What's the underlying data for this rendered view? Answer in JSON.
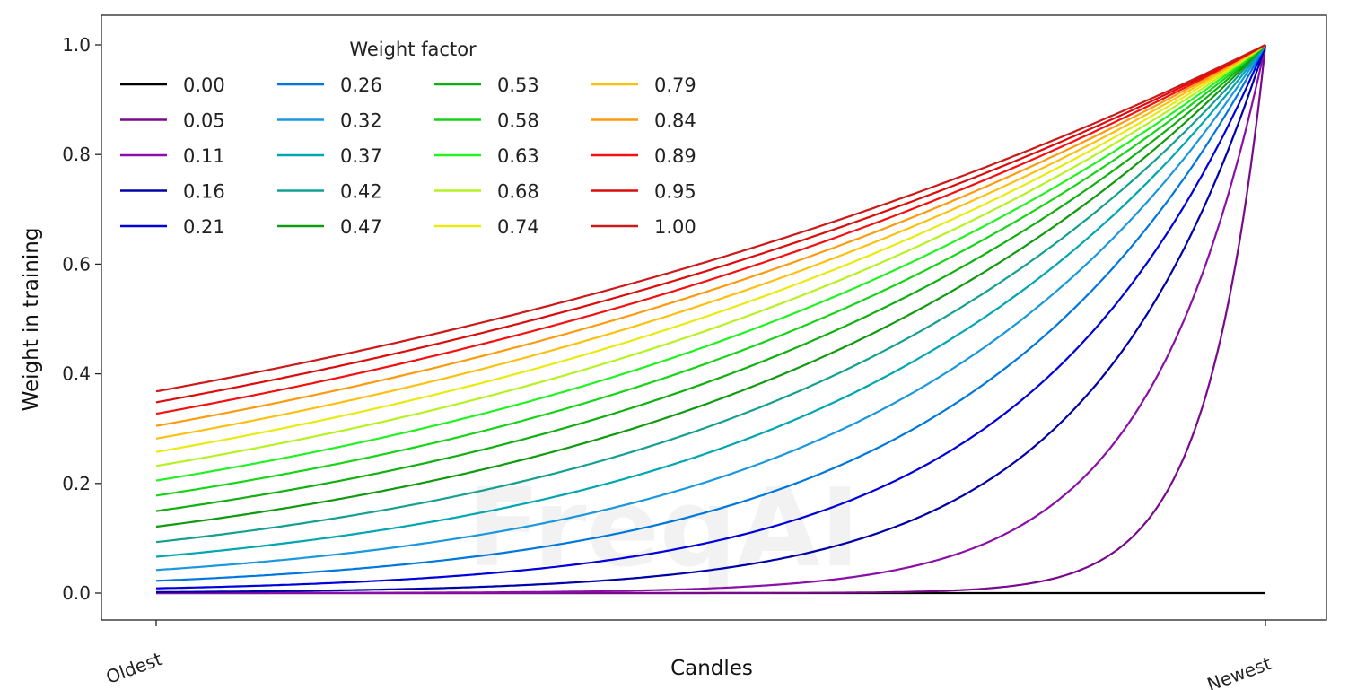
{
  "chart_data": {
    "type": "line",
    "title": "",
    "xlabel": "Candles",
    "ylabel": "Weight in training",
    "x_tick_labels": [
      "Oldest",
      "Newest"
    ],
    "x": [
      0,
      0.1,
      0.2,
      0.3,
      0.4,
      0.5,
      0.6,
      0.7,
      0.8,
      0.9,
      1.0
    ],
    "y_ticks": [
      "0.0",
      "0.2",
      "0.4",
      "0.6",
      "0.8",
      "1.0"
    ],
    "ylim": [
      -0.05,
      1.05
    ],
    "grid": false,
    "legend": {
      "title": "Weight factor",
      "placement": "top-left",
      "columns": 4
    },
    "watermark": "FreqAI",
    "series": [
      {
        "name": "0.00",
        "color": "#000000",
        "values": [
          0,
          0,
          0,
          0,
          0,
          0,
          0,
          0,
          0,
          0,
          0
        ]
      },
      {
        "name": "0.05",
        "color": "#7a0a8c",
        "values": [
          0,
          0,
          0,
          0,
          0,
          0.0001,
          0.0005,
          0.0033,
          0.0224,
          0.1496,
          1
        ]
      },
      {
        "name": "0.11",
        "color": "#8a0fa6",
        "values": [
          0.0001,
          0.0002,
          0.0005,
          0.0013,
          0.0033,
          0.0087,
          0.0224,
          0.0578,
          0.1496,
          0.3867,
          1
        ]
      },
      {
        "name": "0.16",
        "color": "#0000a8",
        "values": [
          0.0018,
          0.0033,
          0.0063,
          0.0119,
          0.0224,
          0.0421,
          0.0794,
          0.1496,
          0.2818,
          0.5309,
          1
        ]
      },
      {
        "name": "0.21",
        "color": "#0000dd",
        "values": [
          0.0087,
          0.0139,
          0.0224,
          0.036,
          0.0578,
          0.093,
          0.1496,
          0.2405,
          0.3867,
          0.6219,
          1
        ]
      },
      {
        "name": "0.26",
        "color": "#0077dd",
        "values": [
          0.0224,
          0.0327,
          0.0478,
          0.0699,
          0.1023,
          0.1496,
          0.2187,
          0.3198,
          0.4677,
          0.6839,
          1
        ]
      },
      {
        "name": "0.32",
        "color": "#1a98dd",
        "values": [
          0.0421,
          0.0578,
          0.0794,
          0.109,
          0.1496,
          0.2053,
          0.2818,
          0.3867,
          0.5309,
          0.7286,
          1
        ]
      },
      {
        "name": "0.37",
        "color": "#00a6b0",
        "values": [
          0.0663,
          0.0869,
          0.114,
          0.1496,
          0.1962,
          0.2574,
          0.3377,
          0.443,
          0.5811,
          0.7623,
          1
        ]
      },
      {
        "name": "0.42",
        "color": "#14a090",
        "values": [
          0.093,
          0.118,
          0.1496,
          0.1897,
          0.2405,
          0.305,
          0.3867,
          0.4904,
          0.6219,
          0.7886,
          1
        ]
      },
      {
        "name": "0.47",
        "color": "#109a10",
        "values": [
          0.1211,
          0.1496,
          0.1847,
          0.2281,
          0.2818,
          0.348,
          0.4298,
          0.5309,
          0.6556,
          0.8097,
          1
        ]
      },
      {
        "name": "0.53",
        "color": "#10b010",
        "values": [
          0.1496,
          0.1809,
          0.2187,
          0.2645,
          0.3198,
          0.3867,
          0.4677,
          0.5655,
          0.6839,
          0.827,
          1
        ]
      },
      {
        "name": "0.58",
        "color": "#18d418",
        "values": [
          0.1778,
          0.2113,
          0.2511,
          0.2984,
          0.3548,
          0.4216,
          0.5011,
          0.5956,
          0.708,
          0.8414,
          1
        ]
      },
      {
        "name": "0.63",
        "color": "#22f222",
        "values": [
          0.2053,
          0.2405,
          0.2818,
          0.3301,
          0.3867,
          0.4531,
          0.5309,
          0.6219,
          0.7286,
          0.8536,
          1
        ]
      },
      {
        "name": "0.68",
        "color": "#b6f222",
        "values": [
          0.2319,
          0.2684,
          0.3106,
          0.3595,
          0.4161,
          0.4815,
          0.5573,
          0.6451,
          0.7466,
          0.8641,
          1
        ]
      },
      {
        "name": "0.74",
        "color": "#eaea10",
        "values": [
          0.2574,
          0.2948,
          0.3377,
          0.3867,
          0.443,
          0.5073,
          0.5811,
          0.6655,
          0.7623,
          0.8731,
          1
        ]
      },
      {
        "name": "0.79",
        "color": "#fcc010",
        "values": [
          0.2818,
          0.3198,
          0.363,
          0.412,
          0.4677,
          0.5309,
          0.6025,
          0.6839,
          0.7762,
          0.881,
          1
        ]
      },
      {
        "name": "0.84",
        "color": "#fc9a10",
        "values": [
          0.305,
          0.3434,
          0.3867,
          0.4355,
          0.4904,
          0.5523,
          0.6219,
          0.7003,
          0.7886,
          0.888,
          1
        ]
      },
      {
        "name": "0.89",
        "color": "#f41010",
        "values": [
          0.3271,
          0.3657,
          0.4089,
          0.4574,
          0.5114,
          0.5719,
          0.6395,
          0.7151,
          0.7997,
          0.8942,
          1
        ]
      },
      {
        "name": "0.95",
        "color": "#dc0c0c",
        "values": [
          0.348,
          0.3867,
          0.4298,
          0.4777,
          0.5309,
          0.5899,
          0.6556,
          0.7286,
          0.8097,
          0.8998,
          1
        ]
      },
      {
        "name": "1.00",
        "color": "#cc1a1a",
        "values": [
          0.3679,
          0.4066,
          0.4493,
          0.4966,
          0.5488,
          0.6065,
          0.6703,
          0.7408,
          0.8187,
          0.9048,
          1
        ]
      }
    ]
  }
}
